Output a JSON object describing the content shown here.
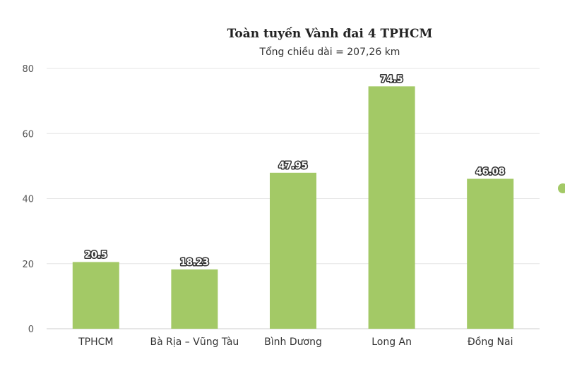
{
  "chart_data": {
    "type": "bar",
    "title": "Toàn tuyến Vành đai 4 TPHCM",
    "subtitle": "Tổng chiều dài = 207,26 km",
    "categories": [
      "TPHCM",
      "Bà Rịa – Vũng Tàu",
      "Bình Dương",
      "Long An",
      "Đồng Nai"
    ],
    "values": [
      20.5,
      18.23,
      47.95,
      74.5,
      46.08
    ],
    "data_labels": [
      "20.5",
      "18.23",
      "47.95",
      "74.5",
      "46.08"
    ],
    "yticks": [
      "0",
      "20",
      "40",
      "60",
      "80"
    ],
    "ylim": [
      0,
      80
    ],
    "xlabel": "",
    "ylabel": "",
    "grid": true,
    "bar_color": "#a3c966",
    "legend_marker_color": "#a3c966"
  }
}
